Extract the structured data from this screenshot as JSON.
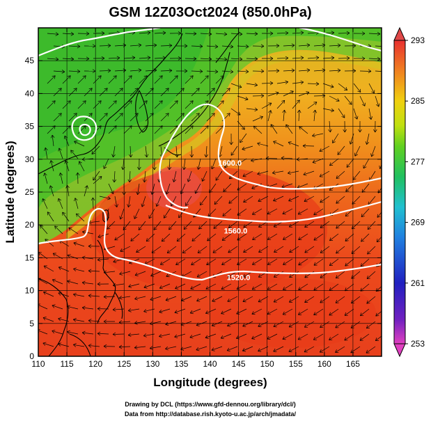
{
  "title": "GSM 12Z03Oct2024 (850.0hPa)",
  "map": {
    "xlabel": "Longitude (degrees)",
    "ylabel": "Latitude  (degrees)",
    "x_ticks": [
      "110",
      "115",
      "120",
      "125",
      "130",
      "135",
      "140",
      "145",
      "150",
      "155",
      "160",
      "165"
    ],
    "y_ticks": [
      "0",
      "5",
      "10",
      "15",
      "20",
      "25",
      "30",
      "35",
      "40",
      "45"
    ],
    "lon_range": [
      110,
      170
    ],
    "lat_range": [
      0,
      50
    ],
    "contours": [
      {
        "label": "1600.0",
        "lon": 143.5,
        "lat": 29.0
      },
      {
        "label": "1560.0",
        "lon": 144.5,
        "lat": 18.7
      },
      {
        "label": "1520.0",
        "lon": 145.0,
        "lat": 11.6
      }
    ]
  },
  "colorbar": {
    "labels": [
      "293",
      "285",
      "277",
      "269",
      "261",
      "253"
    ],
    "min": 253,
    "max": 293
  },
  "credits": {
    "line1": "Drawing by DCL (https://www.gfd-dennou.org/library/dcl/)",
    "line2": "Data from http://database.rish.kyoto-u.ac.jp/arch/jmadata/"
  }
}
